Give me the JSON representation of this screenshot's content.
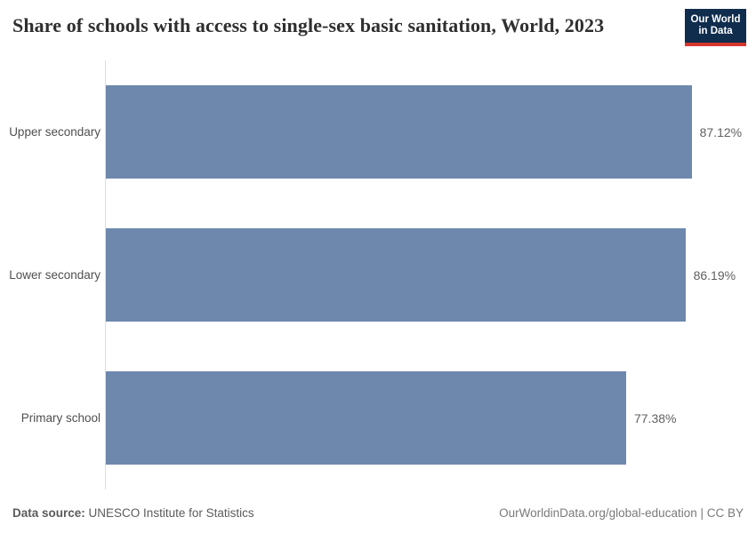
{
  "header": {
    "title": "Share of schools with access to single-sex basic sanitation, World, 2023",
    "logo": {
      "line1": "Our World",
      "line2": "in Data",
      "bg_color": "#102d4e",
      "accent_color": "#d7342c"
    }
  },
  "chart_data": {
    "type": "bar",
    "orientation": "horizontal",
    "title": "Share of schools with access to single-sex basic sanitation, World, 2023",
    "categories": [
      "Upper secondary",
      "Lower secondary",
      "Primary school"
    ],
    "values": [
      87.12,
      86.19,
      77.38
    ],
    "value_labels": [
      "87.12%",
      "86.19%",
      "77.38%"
    ],
    "unit": "%",
    "xlim": [
      0,
      100
    ],
    "grid": false,
    "legend": "none",
    "bar_color": "#6e87ad",
    "axis_line_color": "#dedede"
  },
  "footer": {
    "source_label": "Data source:",
    "source_text": "UNESCO Institute for Statistics",
    "credit": "OurWorldinData.org/global-education | CC BY"
  }
}
